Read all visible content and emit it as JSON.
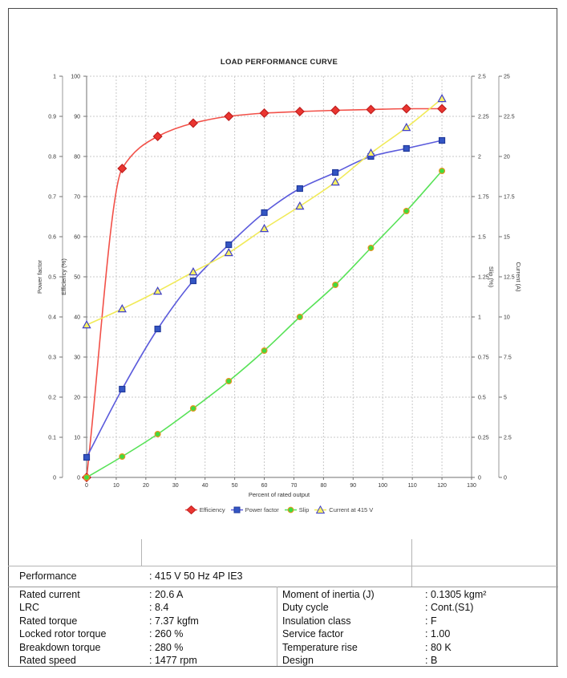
{
  "chart_data": {
    "type": "line",
    "title": "LOAD PERFORMANCE CURVE",
    "xlabel": "Percent of rated output",
    "grid": "dashed",
    "legend_position": "bottom",
    "x": [
      0,
      12,
      24,
      36,
      48,
      60,
      72,
      84,
      96,
      108,
      120
    ],
    "axes": {
      "x": {
        "min": 0,
        "max": 130,
        "step": 10
      },
      "power_factor": {
        "label": "Power factor",
        "min": 0,
        "max": 1,
        "step": 0.1
      },
      "efficiency": {
        "label": "Efficiency (%)",
        "min": 0,
        "max": 100,
        "step": 10
      },
      "slip": {
        "label": "Slip (%)",
        "min": 0,
        "max": 2.5,
        "step": 0.25
      },
      "current": {
        "label": "Current (A)",
        "min": 0,
        "max": 25,
        "step": 2.5
      }
    },
    "series": [
      {
        "name": "Efficiency",
        "axis": "efficiency",
        "marker": "diamond",
        "line_color": "#f25048",
        "marker_fill": "#ea3530",
        "marker_stroke": "#c01f1f",
        "values": [
          0,
          77,
          85,
          88.3,
          90.0,
          90.8,
          91.2,
          91.5,
          91.7,
          91.9,
          91.9
        ]
      },
      {
        "name": "Power factor",
        "axis": "power_factor",
        "marker": "square",
        "line_color": "#5b5bdc",
        "marker_fill": "#3456c4",
        "marker_stroke": "#20399b",
        "values": [
          0.05,
          0.22,
          0.37,
          0.49,
          0.58,
          0.66,
          0.72,
          0.76,
          0.8,
          0.82,
          0.84
        ]
      },
      {
        "name": "Slip",
        "axis": "slip",
        "marker": "circle",
        "line_color": "#57e257",
        "marker_fill": "#3fdc3f",
        "marker_stroke": "#e6941f",
        "values": [
          0,
          0.13,
          0.27,
          0.43,
          0.6,
          0.79,
          1.0,
          1.2,
          1.43,
          1.66,
          1.91
        ]
      },
      {
        "name": "Current at 415 V",
        "axis": "current",
        "marker": "triangle",
        "line_color": "#f1ea58",
        "marker_fill": "#f8f163",
        "marker_stroke": "#4040c8",
        "values": [
          9.5,
          10.5,
          11.6,
          12.8,
          14.0,
          15.5,
          16.9,
          18.4,
          20.2,
          21.8,
          23.6
        ]
      }
    ]
  },
  "table": {
    "performance_row": {
      "label": "Performance",
      "value": ": 415 V 50 Hz 4P IE3"
    },
    "left_rows": [
      {
        "label": "Rated current",
        "value": ": 20.6 A"
      },
      {
        "label": "LRC",
        "value": ": 8.4"
      },
      {
        "label": "Rated torque",
        "value": ": 7.37 kgfm"
      },
      {
        "label": "Locked rotor torque",
        "value": ": 260 %"
      },
      {
        "label": "Breakdown torque",
        "value": ": 280 %"
      },
      {
        "label": "Rated speed",
        "value": ": 1477 rpm"
      }
    ],
    "right_rows": [
      {
        "label": "Moment of inertia (J)",
        "value": ": 0.1305 kgm²"
      },
      {
        "label": "Duty cycle",
        "value": ": Cont.(S1)"
      },
      {
        "label": "Insulation class",
        "value": ": F"
      },
      {
        "label": "Service factor",
        "value": ": 1.00"
      },
      {
        "label": "Temperature rise",
        "value": ": 80 K"
      },
      {
        "label": "Design",
        "value": ": B"
      }
    ]
  }
}
